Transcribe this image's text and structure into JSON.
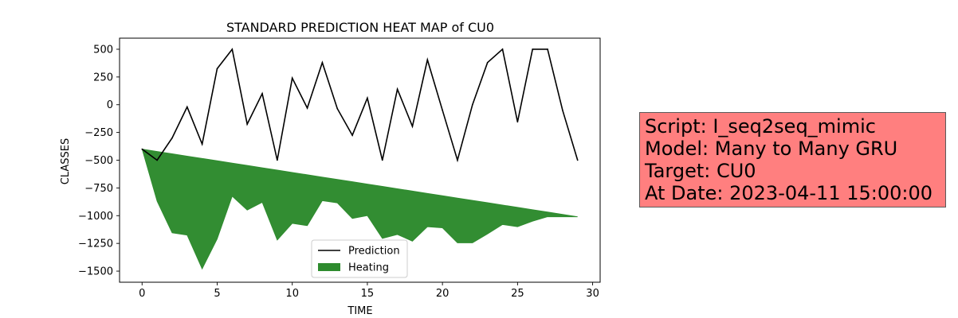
{
  "chart_data": {
    "type": "line",
    "title": "STANDARD PREDICTION HEAT MAP of CU0",
    "xlabel": "TIME",
    "ylabel": "CLASSES",
    "xlim": [
      -1.5,
      30.5
    ],
    "ylim": [
      -1600,
      600
    ],
    "xticks": [
      0,
      5,
      10,
      15,
      20,
      25,
      30
    ],
    "yticks": [
      500,
      250,
      0,
      -250,
      -500,
      -750,
      -1000,
      -1250,
      -1500
    ],
    "ytick_labels": [
      "500",
      "250",
      "0",
      "−250",
      "−500",
      "−750",
      "−1000",
      "−1250",
      "−1500"
    ],
    "grid": false,
    "legend_placement": "lower-center",
    "series": [
      {
        "name": "Prediction",
        "kind": "line",
        "color": "#000000",
        "x": [
          0,
          1,
          2,
          3,
          4,
          5,
          6,
          7,
          8,
          9,
          10,
          11,
          12,
          13,
          14,
          15,
          16,
          17,
          18,
          19,
          20,
          21,
          22,
          23,
          24,
          25,
          26,
          27,
          28,
          29
        ],
        "values": [
          -400,
          -500,
          -300,
          -20,
          -355,
          325,
          500,
          -175,
          100,
          -500,
          240,
          -30,
          380,
          -35,
          -275,
          60,
          -500,
          140,
          -195,
          405,
          -50,
          -500,
          0,
          380,
          500,
          -155,
          500,
          500,
          -50,
          -500
        ]
      },
      {
        "name": "Heating",
        "kind": "fill_between",
        "color": "#2e8b2e",
        "x": [
          0,
          1,
          2,
          3,
          4,
          5,
          6,
          7,
          8,
          9,
          10,
          11,
          12,
          13,
          14,
          15,
          16,
          17,
          18,
          19,
          20,
          21,
          22,
          23,
          24,
          25,
          26,
          27,
          28,
          29
        ],
        "upper": [
          -400,
          -421,
          -442,
          -463,
          -484,
          -505,
          -526,
          -547,
          -568,
          -589,
          -610,
          -631,
          -652,
          -673,
          -694,
          -715,
          -736,
          -757,
          -778,
          -799,
          -820,
          -841,
          -862,
          -883,
          -904,
          -925,
          -946,
          -967,
          -988,
          -1010
        ],
        "lower": [
          -400,
          -870,
          -1155,
          -1175,
          -1480,
          -1210,
          -825,
          -950,
          -880,
          -1220,
          -1070,
          -1090,
          -865,
          -885,
          -1025,
          -1000,
          -1205,
          -1170,
          -1230,
          -1100,
          -1110,
          -1245,
          -1245,
          -1165,
          -1080,
          -1100,
          -1050,
          -1010,
          -1010,
          -1010
        ]
      }
    ]
  },
  "info_box": {
    "background": "#ff7f7f",
    "lines": [
      "Script: I_seq2seq_mimic",
      "Model: Many to Many GRU",
      "Target: CU0",
      "At Date: 2023-04-11 15:00:00"
    ]
  }
}
